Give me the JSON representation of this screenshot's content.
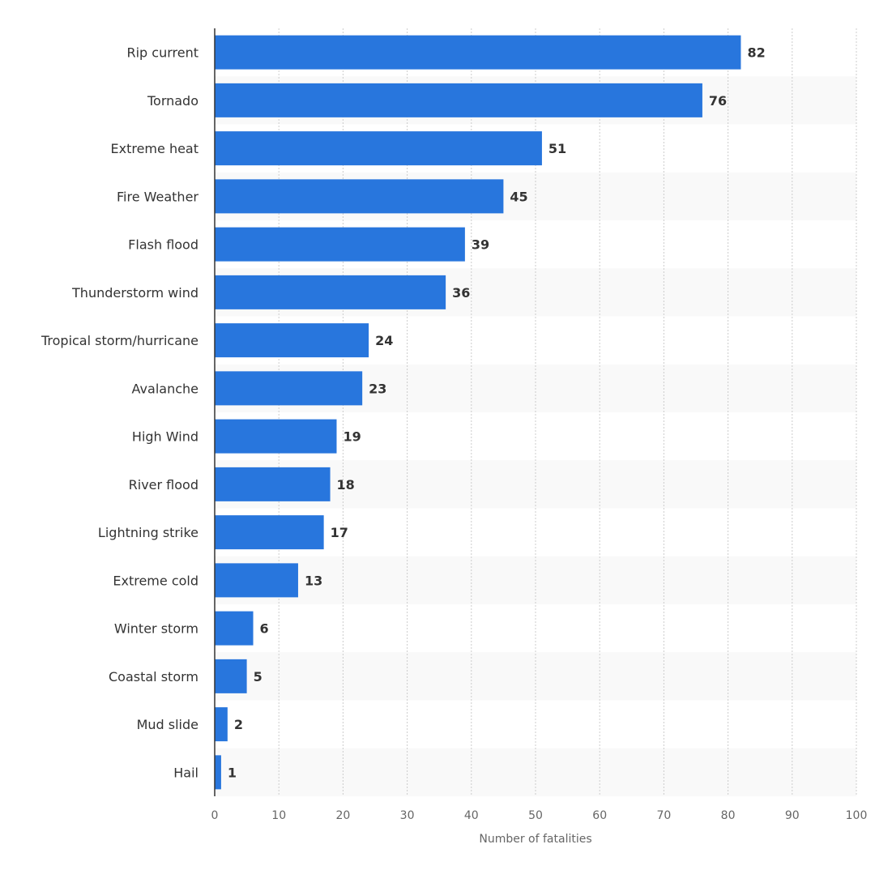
{
  "chart_data": {
    "type": "bar",
    "orientation": "horizontal",
    "categories": [
      "Rip current",
      "Tornado",
      "Extreme heat",
      "Fire Weather",
      "Flash flood",
      "Thunderstorm wind",
      "Tropical storm/hurricane",
      "Avalanche",
      "High Wind",
      "River flood",
      "Lightning strike",
      "Extreme cold",
      "Winter storm",
      "Coastal storm",
      "Mud slide",
      "Hail"
    ],
    "values": [
      82,
      76,
      51,
      45,
      39,
      36,
      24,
      23,
      19,
      18,
      17,
      13,
      6,
      5,
      2,
      1
    ],
    "title": "",
    "xlabel": "Number of fatalities",
    "ylabel": "",
    "xlim": [
      0,
      100
    ],
    "xticks": [
      0,
      10,
      20,
      30,
      40,
      50,
      60,
      70,
      80,
      90,
      100
    ],
    "grid": true,
    "legend": "none",
    "bar_color": "#2876dd",
    "stripe_color": "#f9f9f9"
  }
}
